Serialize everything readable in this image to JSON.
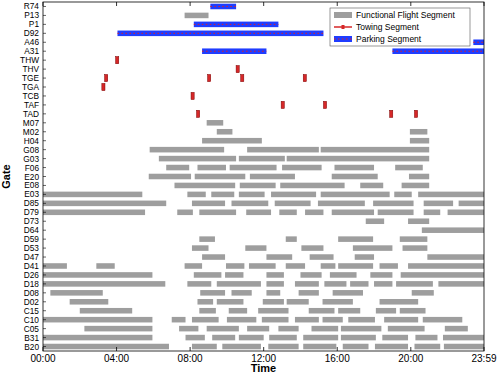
{
  "chart_data": {
    "type": "gantt",
    "x_label": "Time",
    "y_label": "Gate",
    "categories": [
      "R74",
      "P13",
      "P1",
      "D92",
      "A46",
      "A31",
      "THW",
      "THV",
      "TGE",
      "TGA",
      "TCB",
      "TAF",
      "TAD",
      "M07",
      "M02",
      "H04",
      "G08",
      "G03",
      "F06",
      "E20",
      "E08",
      "E03",
      "D85",
      "D79",
      "D73",
      "D64",
      "D59",
      "D53",
      "D47",
      "D41",
      "D26",
      "D18",
      "D08",
      "D02",
      "C15",
      "C10",
      "C05",
      "B31",
      "B20"
    ],
    "xlim": [
      0,
      23.98
    ],
    "xticks": [
      {
        "value": 0,
        "label": "00:00"
      },
      {
        "value": 4,
        "label": "04:00"
      },
      {
        "value": 8,
        "label": "08:00"
      },
      {
        "value": 12,
        "label": "12:00"
      },
      {
        "value": 16,
        "label": "16:00"
      },
      {
        "value": 20,
        "label": "20:00"
      },
      {
        "value": 23.98,
        "label": "23:59"
      }
    ],
    "legend": "upper right",
    "series": [
      {
        "name": "Functional Flight Segment",
        "color": "#9e9e9e",
        "segments": [
          [
            "P13",
            7.7,
            9.0
          ],
          [
            "M07",
            8.9,
            9.8
          ],
          [
            "M02",
            9.45,
            10.3
          ],
          [
            "M02",
            19.95,
            20.9
          ],
          [
            "H04",
            8.65,
            11.9
          ],
          [
            "H04",
            19.95,
            21.0
          ],
          [
            "G08",
            5.8,
            9.85
          ],
          [
            "G08",
            11.1,
            15.0
          ],
          [
            "G08",
            15.1,
            21.0
          ],
          [
            "G03",
            6.3,
            10.5
          ],
          [
            "G03",
            10.65,
            13.15
          ],
          [
            "G03",
            13.25,
            21.0
          ],
          [
            "F06",
            6.7,
            7.95
          ],
          [
            "F06",
            8.4,
            9.95
          ],
          [
            "F06",
            10.15,
            12.7
          ],
          [
            "F06",
            13.0,
            15.15
          ],
          [
            "F06",
            15.85,
            18.0
          ],
          [
            "F06",
            19.15,
            20.65
          ],
          [
            "E20",
            5.75,
            8.05
          ],
          [
            "E20",
            8.25,
            11.0
          ],
          [
            "E20",
            11.25,
            13.7
          ],
          [
            "E20",
            15.7,
            18.2
          ],
          [
            "E20",
            19.9,
            21.0
          ],
          [
            "E08",
            7.15,
            10.45
          ],
          [
            "E08",
            10.7,
            12.65
          ],
          [
            "E08",
            12.9,
            16.4
          ],
          [
            "E08",
            17.25,
            18.5
          ],
          [
            "E08",
            19.5,
            21.0
          ],
          [
            "E03",
            0,
            5.4
          ],
          [
            "E03",
            7.85,
            8.85
          ],
          [
            "E03",
            9.15,
            10.4
          ],
          [
            "E03",
            10.65,
            12.05
          ],
          [
            "E03",
            12.4,
            14.85
          ],
          [
            "E03",
            15.1,
            18.85
          ],
          [
            "E03",
            19.1,
            20.05
          ],
          [
            "E03",
            20.4,
            23.98
          ],
          [
            "D85",
            0,
            6.7
          ],
          [
            "D85",
            8.1,
            9.9
          ],
          [
            "D85",
            10.25,
            12.25
          ],
          [
            "D85",
            12.6,
            14.55
          ],
          [
            "D85",
            14.95,
            17.5
          ],
          [
            "D85",
            17.95,
            20.15
          ],
          [
            "D85",
            20.7,
            22.3
          ],
          [
            "D85",
            22.6,
            23.98
          ],
          [
            "D79",
            0,
            5.55
          ],
          [
            "D79",
            7.3,
            8.15
          ],
          [
            "D79",
            8.5,
            10.5
          ],
          [
            "D79",
            11.05,
            12.4
          ],
          [
            "D79",
            12.85,
            13.8
          ],
          [
            "D79",
            14.25,
            15.25
          ],
          [
            "D79",
            15.7,
            18.0
          ],
          [
            "D79",
            18.2,
            20.15
          ],
          [
            "D79",
            20.7,
            21.6
          ],
          [
            "D79",
            22.0,
            23.98
          ],
          [
            "D73",
            17.55,
            18.55
          ],
          [
            "D73",
            19.85,
            21.0
          ],
          [
            "D64",
            20.6,
            23.98
          ],
          [
            "D59",
            8.5,
            9.35
          ],
          [
            "D59",
            13.2,
            13.8
          ],
          [
            "D59",
            16.05,
            17.95
          ],
          [
            "D59",
            19.4,
            20.9
          ],
          [
            "D53",
            8.1,
            9.0
          ],
          [
            "D53",
            11.0,
            12.15
          ],
          [
            "D53",
            14.05,
            15.25
          ],
          [
            "D53",
            16.85,
            19.0
          ],
          [
            "D53",
            19.55,
            20.9
          ],
          [
            "D47",
            8.65,
            9.9
          ],
          [
            "D47",
            12.15,
            13.55
          ],
          [
            "D47",
            14.5,
            15.8
          ],
          [
            "D47",
            16.95,
            18.0
          ],
          [
            "D47",
            20.9,
            23.98
          ],
          [
            "D41",
            0,
            1.3
          ],
          [
            "D41",
            2.9,
            3.9
          ],
          [
            "D41",
            7.7,
            8.65
          ],
          [
            "D41",
            9.95,
            10.95
          ],
          [
            "D41",
            11.2,
            12.65
          ],
          [
            "D41",
            13.2,
            14.25
          ],
          [
            "D41",
            15.1,
            15.9
          ],
          [
            "D41",
            16.05,
            17.95
          ],
          [
            "D41",
            18.3,
            19.3
          ],
          [
            "D41",
            19.85,
            23.98
          ],
          [
            "D26",
            0,
            5.95
          ],
          [
            "D26",
            8.2,
            9.7
          ],
          [
            "D26",
            9.9,
            10.9
          ],
          [
            "D26",
            12.15,
            13.1
          ],
          [
            "D26",
            14.0,
            15.15
          ],
          [
            "D26",
            15.6,
            17.05
          ],
          [
            "D26",
            17.8,
            19.0
          ],
          [
            "D26",
            19.45,
            23.98
          ],
          [
            "D18",
            0,
            6.65
          ],
          [
            "D18",
            7.85,
            9.15
          ],
          [
            "D18",
            9.45,
            11.85
          ],
          [
            "D18",
            12.15,
            13.1
          ],
          [
            "D18",
            13.7,
            15.0
          ],
          [
            "D18",
            15.3,
            16.5
          ],
          [
            "D18",
            16.7,
            17.7
          ],
          [
            "D18",
            18.0,
            19.0
          ],
          [
            "D18",
            19.2,
            21.2
          ],
          [
            "D18",
            21.5,
            23.98
          ],
          [
            "D08",
            0.4,
            3.25
          ],
          [
            "D08",
            8.55,
            9.9
          ],
          [
            "D08",
            10.25,
            11.35
          ],
          [
            "D08",
            12.15,
            12.9
          ],
          [
            "D08",
            13.9,
            15.0
          ],
          [
            "D08",
            15.75,
            17.4
          ],
          [
            "D08",
            20.05,
            21.25
          ],
          [
            "D02",
            1.45,
            3.55
          ],
          [
            "D02",
            8.4,
            9.25
          ],
          [
            "D02",
            9.45,
            10.9
          ],
          [
            "D02",
            11.95,
            13.1
          ],
          [
            "D02",
            13.25,
            14.45
          ],
          [
            "D02",
            15.2,
            16.85
          ],
          [
            "D02",
            18.3,
            20.4
          ],
          [
            "C15",
            2.0,
            4.85
          ],
          [
            "C15",
            8.5,
            9.4
          ],
          [
            "C15",
            10.1,
            11.1
          ],
          [
            "C15",
            11.7,
            13.35
          ],
          [
            "C15",
            14.45,
            15.85
          ],
          [
            "C15",
            16.05,
            17.25
          ],
          [
            "C15",
            18.1,
            19.2
          ],
          [
            "C15",
            19.4,
            20.8
          ],
          [
            "C10",
            0,
            5.95
          ],
          [
            "C10",
            7.0,
            7.75
          ],
          [
            "C10",
            8.1,
            9.55
          ],
          [
            "C10",
            10.0,
            11.6
          ],
          [
            "C10",
            11.9,
            13.35
          ],
          [
            "C10",
            13.7,
            15.0
          ],
          [
            "C10",
            15.2,
            16.3
          ],
          [
            "C10",
            16.6,
            18.05
          ],
          [
            "C10",
            18.55,
            20.4
          ],
          [
            "C10",
            20.65,
            22.8
          ],
          [
            "C05",
            2.25,
            5.95
          ],
          [
            "C05",
            7.4,
            8.45
          ],
          [
            "C05",
            8.9,
            10.65
          ],
          [
            "C05",
            11.1,
            12.3
          ],
          [
            "C05",
            12.8,
            13.9
          ],
          [
            "C05",
            14.6,
            16.05
          ],
          [
            "C05",
            16.2,
            18.4
          ],
          [
            "C05",
            18.75,
            20.75
          ],
          [
            "C05",
            21.85,
            23.1
          ],
          [
            "B31",
            0,
            5.95
          ],
          [
            "B31",
            7.75,
            8.8
          ],
          [
            "B31",
            9.2,
            10.45
          ],
          [
            "B31",
            10.65,
            12.0
          ],
          [
            "B31",
            12.3,
            13.8
          ],
          [
            "B31",
            14.15,
            16.05
          ],
          [
            "B31",
            16.2,
            18.1
          ],
          [
            "B31",
            18.45,
            19.85
          ],
          [
            "B31",
            20.25,
            21.45
          ],
          [
            "B31",
            21.75,
            23.98
          ],
          [
            "B20",
            0,
            6.85
          ],
          [
            "B20",
            8.1,
            9.45
          ],
          [
            "B20",
            9.75,
            11.85
          ],
          [
            "B20",
            12.25,
            13.9
          ],
          [
            "B20",
            14.15,
            15.95
          ],
          [
            "B20",
            16.3,
            17.7
          ],
          [
            "B20",
            18.05,
            19.85
          ],
          [
            "B20",
            20.2,
            21.6
          ],
          [
            "B20",
            21.8,
            23.98
          ]
        ]
      },
      {
        "name": "Towing Segment",
        "color": "#d62728",
        "segments": [
          [
            "THW",
            3.95,
            4.12
          ],
          [
            "THV",
            10.5,
            10.67
          ],
          [
            "TGE",
            3.35,
            3.52
          ],
          [
            "TGE",
            8.95,
            9.12
          ],
          [
            "TGE",
            10.75,
            10.92
          ],
          [
            "TGE",
            14.15,
            14.32
          ],
          [
            "TGA",
            3.2,
            3.37
          ],
          [
            "TCB",
            8.05,
            8.22
          ],
          [
            "TAF",
            12.95,
            13.12
          ],
          [
            "TAF",
            15.25,
            15.42
          ],
          [
            "TAD",
            8.35,
            8.52
          ],
          [
            "TAD",
            18.85,
            19.02
          ],
          [
            "TAD",
            20.2,
            20.37
          ]
        ]
      },
      {
        "name": "Parking Segment",
        "color": "#1f3cff",
        "segments": [
          [
            "R74",
            9.1,
            10.5
          ],
          [
            "P1",
            8.2,
            12.8
          ],
          [
            "D92",
            4.05,
            15.25
          ],
          [
            "A46",
            23.4,
            23.98
          ],
          [
            "A31",
            8.65,
            12.15
          ],
          [
            "A31",
            19.0,
            23.98
          ]
        ]
      }
    ]
  }
}
